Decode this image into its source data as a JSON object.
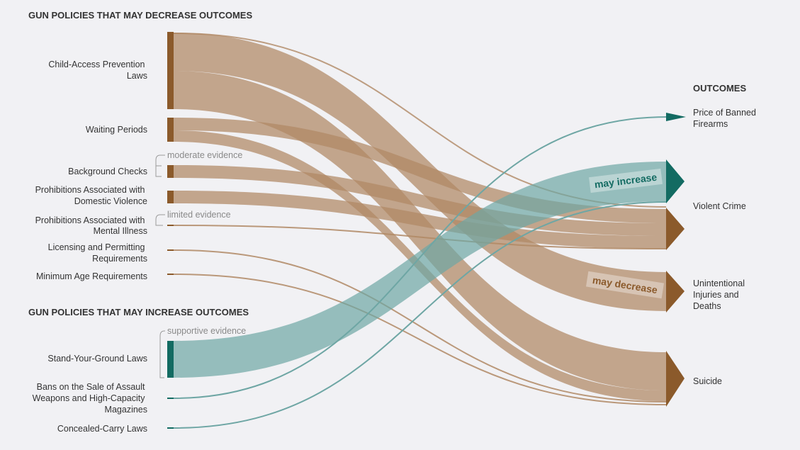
{
  "sections": {
    "decrease_title": "GUN POLICIES THAT MAY DECREASE OUTCOMES",
    "increase_title": "GUN POLICIES THAT MAY INCREASE OUTCOMES",
    "outcomes_title": "OUTCOMES"
  },
  "evidence": {
    "moderate": "moderate evidence",
    "limited": "limited evidence",
    "supportive": "supportive evidence"
  },
  "policies": [
    {
      "id": "child-access",
      "lines": [
        "Child-Access Prevention",
        "Laws"
      ]
    },
    {
      "id": "waiting",
      "lines": [
        "Waiting Periods"
      ]
    },
    {
      "id": "background",
      "lines": [
        "Background Checks"
      ]
    },
    {
      "id": "domestic",
      "lines": [
        "Prohibitions Associated with",
        "Domestic Violence"
      ]
    },
    {
      "id": "mental",
      "lines": [
        "Prohibitions Associated with",
        "Mental Illness"
      ]
    },
    {
      "id": "licensing",
      "lines": [
        "Licensing and Permitting",
        "Requirements"
      ]
    },
    {
      "id": "min-age",
      "lines": [
        "Minimum Age Requirements"
      ]
    },
    {
      "id": "syg",
      "lines": [
        "Stand-Your-Ground Laws"
      ]
    },
    {
      "id": "assault-ban",
      "lines": [
        "Bans on the Sale of Assault",
        "Weapons and High-Capacity",
        "Magazines"
      ]
    },
    {
      "id": "concealed",
      "lines": [
        "Concealed-Carry Laws"
      ]
    }
  ],
  "outcomes": [
    {
      "id": "price",
      "lines": [
        "Price of Banned",
        "Firearms"
      ]
    },
    {
      "id": "violent",
      "lines": [
        "Violent Crime"
      ]
    },
    {
      "id": "unintentional",
      "lines": [
        "Unintentional",
        "Injuries and",
        "Deaths"
      ]
    },
    {
      "id": "suicide",
      "lines": [
        "Suicide"
      ]
    }
  ],
  "ribbon_labels": {
    "increase": "may increase",
    "decrease": "may decrease"
  },
  "colors": {
    "decrease": "#8b5a2b",
    "decrease_flow": "#b89574",
    "increase": "#136b62",
    "increase_flow": "#6ea6a4",
    "background": "#f1f1f4"
  }
}
